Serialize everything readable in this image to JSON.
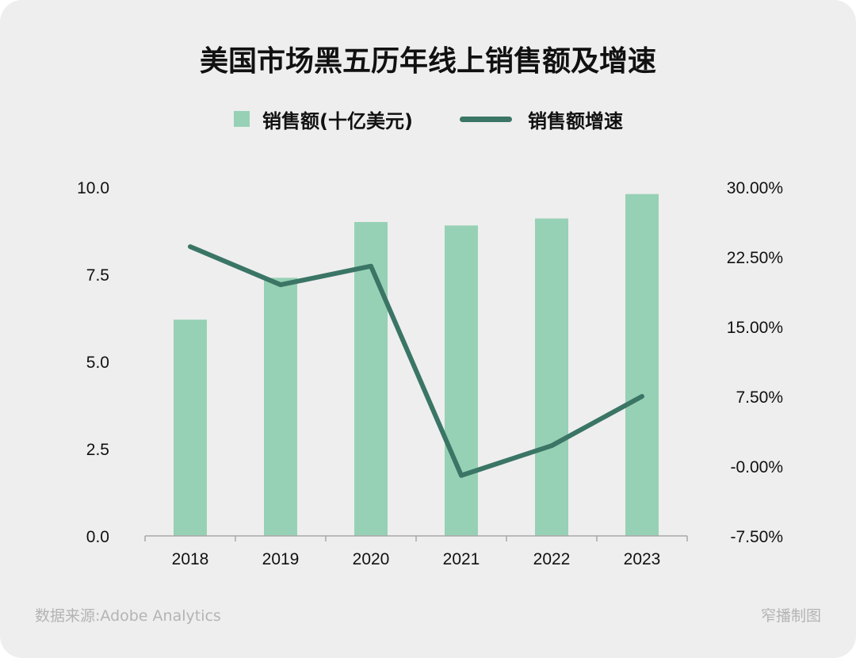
{
  "colors": {
    "bar": "#97d1b5",
    "line": "#3a7565",
    "background": "#eeeeee",
    "muted": "#b4b4b4"
  },
  "chart_data": {
    "type": "bar",
    "title": "美国市场黑五历年线上销售额及增速",
    "categories": [
      "2018",
      "2019",
      "2020",
      "2021",
      "2022",
      "2023"
    ],
    "series": [
      {
        "name": "销售额(十亿美元)",
        "type": "bar",
        "axis": "left",
        "values": [
          6.2,
          7.4,
          9.0,
          8.9,
          9.1,
          9.8
        ]
      },
      {
        "name": "销售额增速",
        "type": "line",
        "axis": "right",
        "values": [
          23.6,
          19.5,
          21.5,
          -1.0,
          2.2,
          7.5
        ]
      }
    ],
    "y_left": {
      "range": [
        0,
        10
      ],
      "ticks": [
        "0.0",
        "2.5",
        "5.0",
        "7.5",
        "10.0"
      ]
    },
    "y_right": {
      "range": [
        -7.5,
        30
      ],
      "ticks": [
        "-7.50%",
        "-0.00%",
        "7.50%",
        "15.00%",
        "22.50%",
        "30.00%"
      ]
    },
    "legend": [
      "销售额(十亿美元)",
      "销售额增速"
    ],
    "legend_position": "top-center",
    "grid": false
  },
  "footer": {
    "source": "数据来源:Adobe Analytics",
    "credit": "窄播制图"
  }
}
